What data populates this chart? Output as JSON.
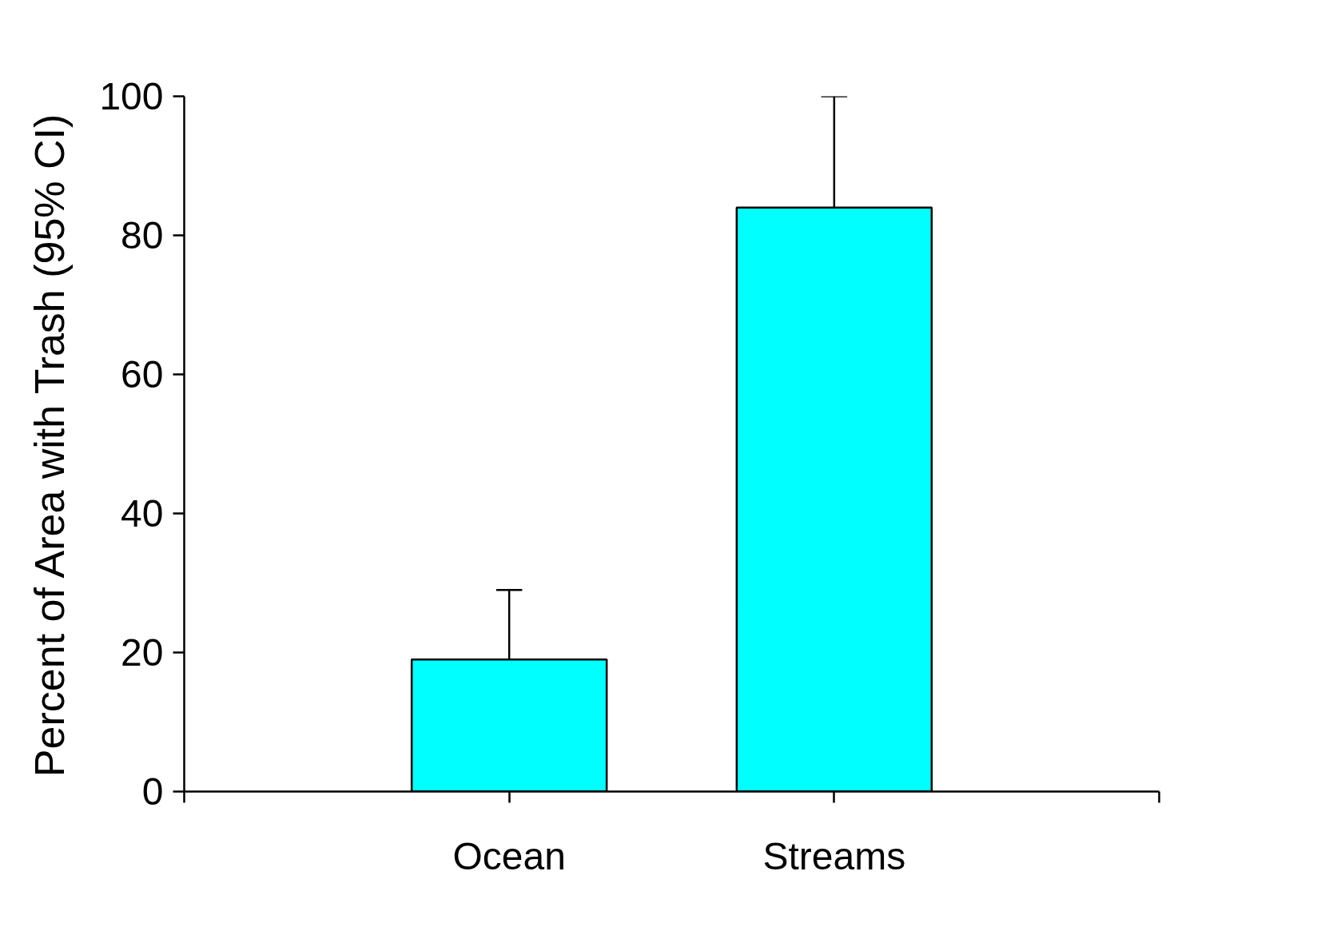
{
  "chart_data": {
    "type": "bar",
    "ylabel": "Percent of Area with Trash (95% CI)",
    "categories": [
      "Ocean",
      "Streams"
    ],
    "values": [
      19,
      84
    ],
    "errors": [
      [
        19,
        29
      ],
      [
        84,
        100
      ]
    ],
    "color": "#00ffff",
    "ylim": [
      0,
      100
    ],
    "yticks": [
      0,
      20,
      40,
      60,
      80,
      100
    ],
    "grid": false
  }
}
